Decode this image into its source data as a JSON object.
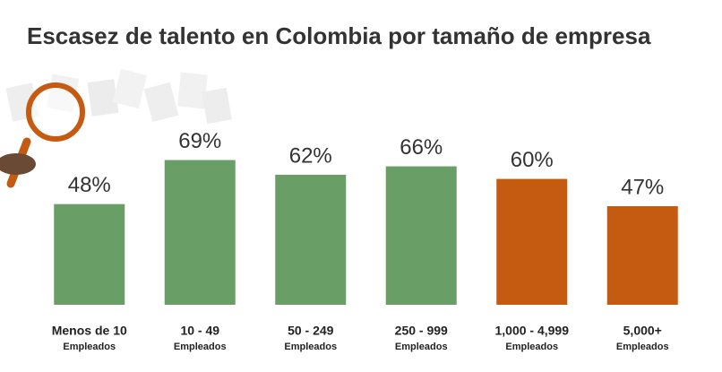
{
  "chart_data": {
    "type": "bar",
    "title": "Escasez de talento en Colombia por tamaño de empresa",
    "categories": [
      "Menos de 10",
      "10 - 49",
      "50 - 249",
      "250 - 999",
      "1,000 - 4,999",
      "5,000+"
    ],
    "category_sublabels": [
      "Empleados",
      "Empleados",
      "Empleados",
      "Empleados",
      "Empleados",
      "Empleados"
    ],
    "values": [
      48,
      69,
      62,
      66,
      60,
      47
    ],
    "value_labels": [
      "48%",
      "69%",
      "62%",
      "66%",
      "60%",
      "47%"
    ],
    "colors": [
      "#6a9e67",
      "#6a9e67",
      "#6a9e67",
      "#6a9e67",
      "#c55a11",
      "#c55a11"
    ]
  }
}
